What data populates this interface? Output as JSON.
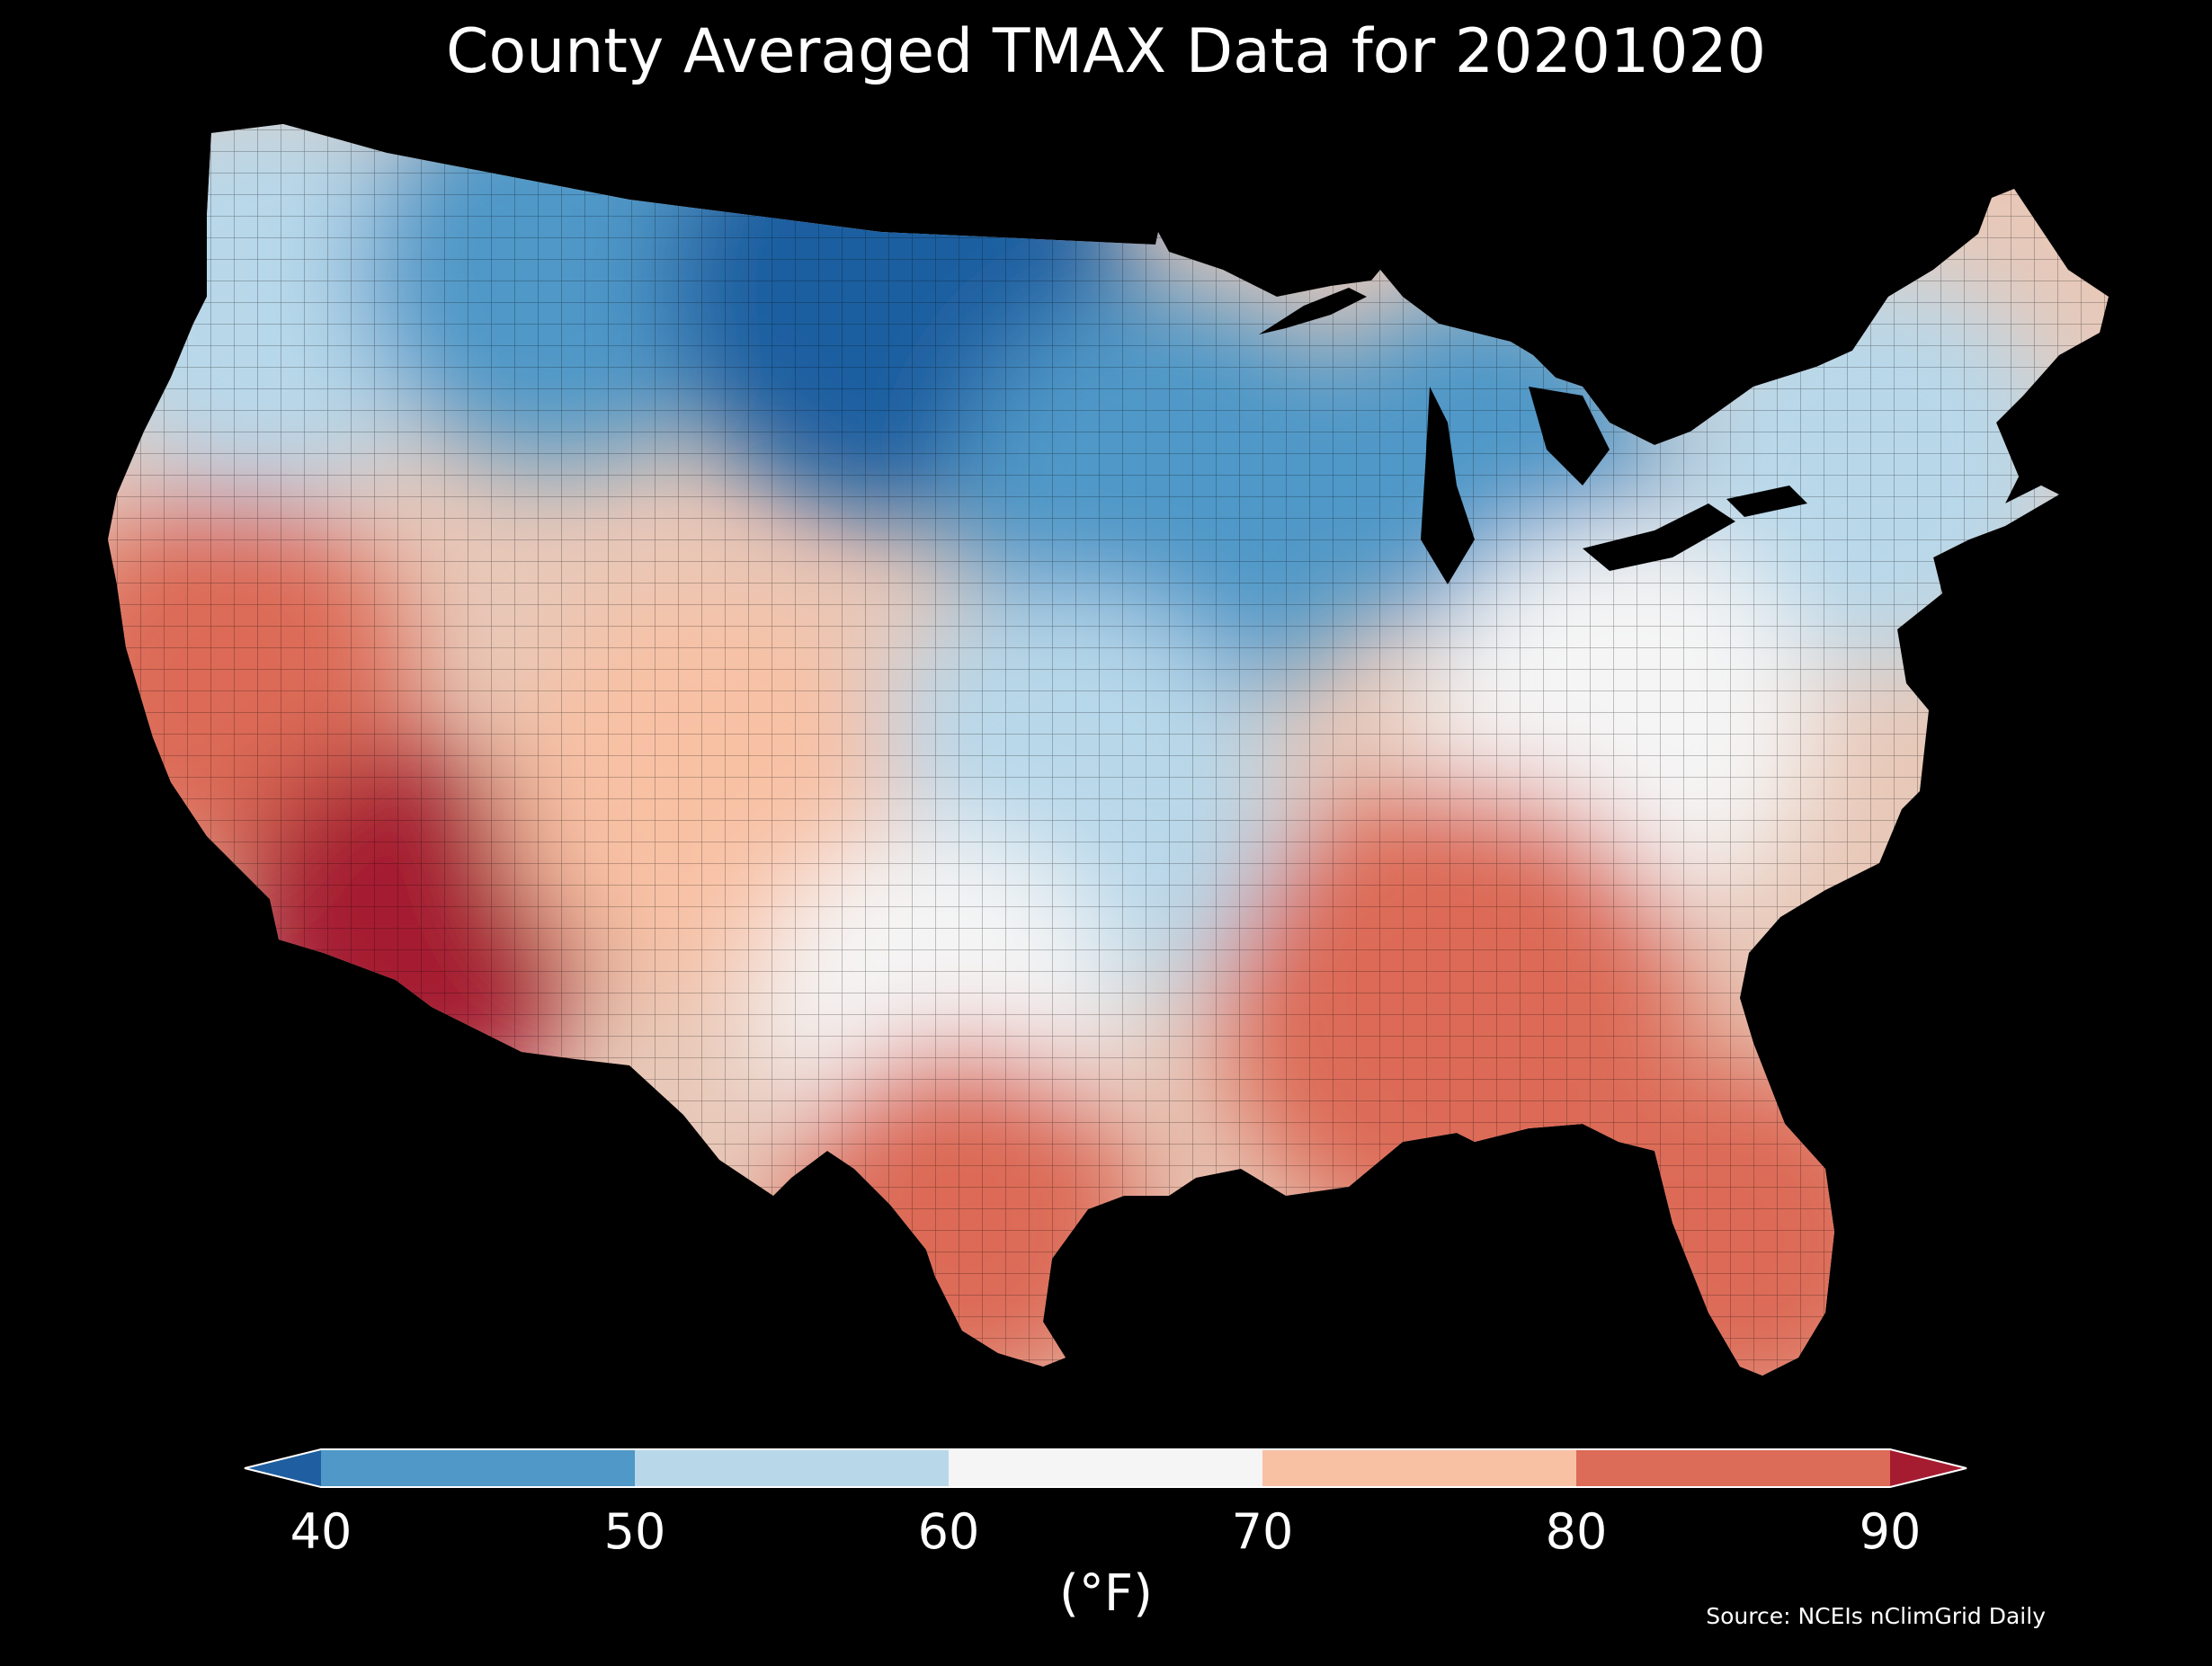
{
  "title": "County Averaged TMAX Data for 20201020",
  "source": "Source: NCEIs nClimGrid Daily",
  "colorbar": {
    "unit_label": "(°F)",
    "ticks": [
      "40",
      "50",
      "60",
      "70",
      "80",
      "90"
    ],
    "under_color": "#1f5ea0",
    "over_color": "#a51c30",
    "bins": [
      {
        "from": 40,
        "to": 50,
        "color": "#4f98c8"
      },
      {
        "from": 50,
        "to": 60,
        "color": "#b8d8ea"
      },
      {
        "from": 60,
        "to": 70,
        "color": "#f5f5f5"
      },
      {
        "from": 70,
        "to": 80,
        "color": "#f8c1a4"
      },
      {
        "from": 80,
        "to": 90,
        "color": "#dc6b57"
      }
    ]
  },
  "map": {
    "region": "Contiguous United States counties",
    "regional_tmax_f": [
      {
        "region": "Pacific Northwest",
        "value": 55
      },
      {
        "region": "Northern Rockies",
        "value": 48
      },
      {
        "region": "Northern Plains",
        "value": 38
      },
      {
        "region": "Upper Midwest",
        "value": 40
      },
      {
        "region": "Great Lakes",
        "value": 48
      },
      {
        "region": "Northeast",
        "value": 58
      },
      {
        "region": "Central Plains",
        "value": 52
      },
      {
        "region": "Mid-Atlantic",
        "value": 68
      },
      {
        "region": "California",
        "value": 84
      },
      {
        "region": "Desert Southwest",
        "value": 90
      },
      {
        "region": "Southern Rockies",
        "value": 74
      },
      {
        "region": "Southern Plains",
        "value": 68
      },
      {
        "region": "South Texas",
        "value": 88
      },
      {
        "region": "Southeast",
        "value": 80
      },
      {
        "region": "Florida",
        "value": 80
      }
    ]
  }
}
